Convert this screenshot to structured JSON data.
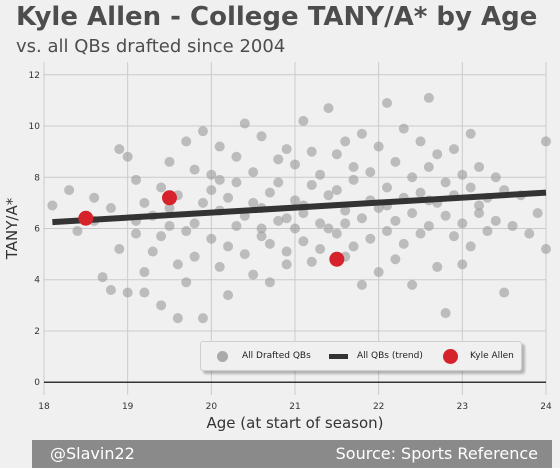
{
  "title": "Kyle Allen - College TANY/A* by Age",
  "subtitle": "vs. all QBs drafted since 2004",
  "footer": {
    "left": "@Slavin22",
    "right": "Source: Sports Reference"
  },
  "colors": {
    "background": "#f0f0f0",
    "points": "#9a9a9a",
    "trend": "#333333",
    "highlight": "#d6222b",
    "footer": "#8a8a8a"
  },
  "chart_data": {
    "type": "scatter",
    "title": "Kyle Allen - College TANY/A* by Age",
    "subtitle": "vs. all QBs drafted since 2004",
    "xlabel": "Age (at start of season)",
    "ylabel": "TANY/A*",
    "xlim": [
      18,
      24
    ],
    "ylim": [
      -0.5,
      12.5
    ],
    "xticks": [
      18,
      19,
      20,
      21,
      22,
      23,
      24
    ],
    "yticks": [
      0,
      2,
      4,
      6,
      8,
      10,
      12
    ],
    "grid": true,
    "legend_position": "bottom-right",
    "legend": [
      "All Drafted QBs",
      "All QBs (trend)",
      "Kyle Allen"
    ],
    "trend": {
      "name": "All QBs (trend)",
      "x": [
        18.1,
        24.0
      ],
      "y": [
        6.25,
        7.4
      ]
    },
    "kyle_allen": {
      "name": "Kyle Allen",
      "x": [
        18.5,
        19.5,
        21.5
      ],
      "y": [
        6.4,
        7.2,
        4.8
      ]
    },
    "all_qbs": {
      "name": "All Drafted QBs",
      "points": [
        [
          18.1,
          6.9
        ],
        [
          18.3,
          7.5
        ],
        [
          18.4,
          5.9
        ],
        [
          18.6,
          7.2
        ],
        [
          18.6,
          6.3
        ],
        [
          18.7,
          4.1
        ],
        [
          18.8,
          6.8
        ],
        [
          18.8,
          3.6
        ],
        [
          18.9,
          9.1
        ],
        [
          18.9,
          5.2
        ],
        [
          19.0,
          8.8
        ],
        [
          19.0,
          3.5
        ],
        [
          19.1,
          7.9
        ],
        [
          19.1,
          5.8
        ],
        [
          19.1,
          6.3
        ],
        [
          19.2,
          4.3
        ],
        [
          19.2,
          3.5
        ],
        [
          19.3,
          6.5
        ],
        [
          19.3,
          5.1
        ],
        [
          19.4,
          7.6
        ],
        [
          19.4,
          3.0
        ],
        [
          19.4,
          5.7
        ],
        [
          19.5,
          8.6
        ],
        [
          19.5,
          6.8
        ],
        [
          19.6,
          4.6
        ],
        [
          19.6,
          2.5
        ],
        [
          19.6,
          7.3
        ],
        [
          19.7,
          9.4
        ],
        [
          19.7,
          5.9
        ],
        [
          19.7,
          3.9
        ],
        [
          19.8,
          8.3
        ],
        [
          19.8,
          6.2
        ],
        [
          19.8,
          4.9
        ],
        [
          19.9,
          9.8
        ],
        [
          19.9,
          7.0
        ],
        [
          19.9,
          2.5
        ],
        [
          20.0,
          7.5
        ],
        [
          20.0,
          5.6
        ],
        [
          20.0,
          8.1
        ],
        [
          20.1,
          6.7
        ],
        [
          20.1,
          4.5
        ],
        [
          20.1,
          9.2
        ],
        [
          20.2,
          7.2
        ],
        [
          20.2,
          5.3
        ],
        [
          20.2,
          3.4
        ],
        [
          20.3,
          8.8
        ],
        [
          20.3,
          6.1
        ],
        [
          20.3,
          7.8
        ],
        [
          20.4,
          5.0
        ],
        [
          20.4,
          10.1
        ],
        [
          20.4,
          6.5
        ],
        [
          20.5,
          8.2
        ],
        [
          20.5,
          4.2
        ],
        [
          20.5,
          7.0
        ],
        [
          20.6,
          5.7
        ],
        [
          20.6,
          9.6
        ],
        [
          20.6,
          6.8
        ],
        [
          20.7,
          7.4
        ],
        [
          20.7,
          3.9
        ],
        [
          20.7,
          5.4
        ],
        [
          20.8,
          8.7
        ],
        [
          20.8,
          6.3
        ],
        [
          20.8,
          7.8
        ],
        [
          20.9,
          5.1
        ],
        [
          20.9,
          9.1
        ],
        [
          20.9,
          4.6
        ],
        [
          21.0,
          7.1
        ],
        [
          21.0,
          6.0
        ],
        [
          21.0,
          8.5
        ],
        [
          21.1,
          5.5
        ],
        [
          21.1,
          10.2
        ],
        [
          21.1,
          6.6
        ],
        [
          21.2,
          7.7
        ],
        [
          21.2,
          4.7
        ],
        [
          21.2,
          9.0
        ],
        [
          21.3,
          6.2
        ],
        [
          21.3,
          8.1
        ],
        [
          21.3,
          5.2
        ],
        [
          21.4,
          7.3
        ],
        [
          21.4,
          10.7
        ],
        [
          21.4,
          6.0
        ],
        [
          21.5,
          8.9
        ],
        [
          21.5,
          5.8
        ],
        [
          21.5,
          7.5
        ],
        [
          21.6,
          4.9
        ],
        [
          21.6,
          9.4
        ],
        [
          21.6,
          6.7
        ],
        [
          21.7,
          7.9
        ],
        [
          21.7,
          5.3
        ],
        [
          21.7,
          8.4
        ],
        [
          21.8,
          6.4
        ],
        [
          21.8,
          3.8
        ],
        [
          21.8,
          9.7
        ],
        [
          21.9,
          7.1
        ],
        [
          21.9,
          5.6
        ],
        [
          21.9,
          8.2
        ],
        [
          22.0,
          6.8
        ],
        [
          22.0,
          4.3
        ],
        [
          22.0,
          9.2
        ],
        [
          22.1,
          7.6
        ],
        [
          22.1,
          5.9
        ],
        [
          22.1,
          10.9
        ],
        [
          22.2,
          6.3
        ],
        [
          22.2,
          8.6
        ],
        [
          22.2,
          4.8
        ],
        [
          22.3,
          7.2
        ],
        [
          22.3,
          9.9
        ],
        [
          22.3,
          5.4
        ],
        [
          22.4,
          8.0
        ],
        [
          22.4,
          6.6
        ],
        [
          22.4,
          3.8
        ],
        [
          22.5,
          7.4
        ],
        [
          22.5,
          9.4
        ],
        [
          22.5,
          5.8
        ],
        [
          22.6,
          8.4
        ],
        [
          22.6,
          6.1
        ],
        [
          22.6,
          11.1
        ],
        [
          22.7,
          7.0
        ],
        [
          22.7,
          4.5
        ],
        [
          22.7,
          8.9
        ],
        [
          22.8,
          6.5
        ],
        [
          22.8,
          7.8
        ],
        [
          22.8,
          2.7
        ],
        [
          22.9,
          9.1
        ],
        [
          22.9,
          5.7
        ],
        [
          22.9,
          7.3
        ],
        [
          23.0,
          6.2
        ],
        [
          23.0,
          8.1
        ],
        [
          23.0,
          4.6
        ],
        [
          23.1,
          7.6
        ],
        [
          23.1,
          9.7
        ],
        [
          23.1,
          5.3
        ],
        [
          23.2,
          6.9
        ],
        [
          23.2,
          8.4
        ],
        [
          23.3,
          7.2
        ],
        [
          23.3,
          5.9
        ],
        [
          23.4,
          8.0
        ],
        [
          23.4,
          6.3
        ],
        [
          23.5,
          7.5
        ],
        [
          23.5,
          3.5
        ],
        [
          23.6,
          6.1
        ],
        [
          23.7,
          7.3
        ],
        [
          23.8,
          5.8
        ],
        [
          23.9,
          6.6
        ],
        [
          24.0,
          9.4
        ],
        [
          24.0,
          5.2
        ],
        [
          19.2,
          7.0
        ],
        [
          19.5,
          6.1
        ],
        [
          20.1,
          7.9
        ],
        [
          20.6,
          6.0
        ],
        [
          21.1,
          6.9
        ],
        [
          21.6,
          6.2
        ],
        [
          22.1,
          6.9
        ],
        [
          22.6,
          7.1
        ],
        [
          23.2,
          6.6
        ],
        [
          20.9,
          6.4
        ]
      ]
    }
  }
}
